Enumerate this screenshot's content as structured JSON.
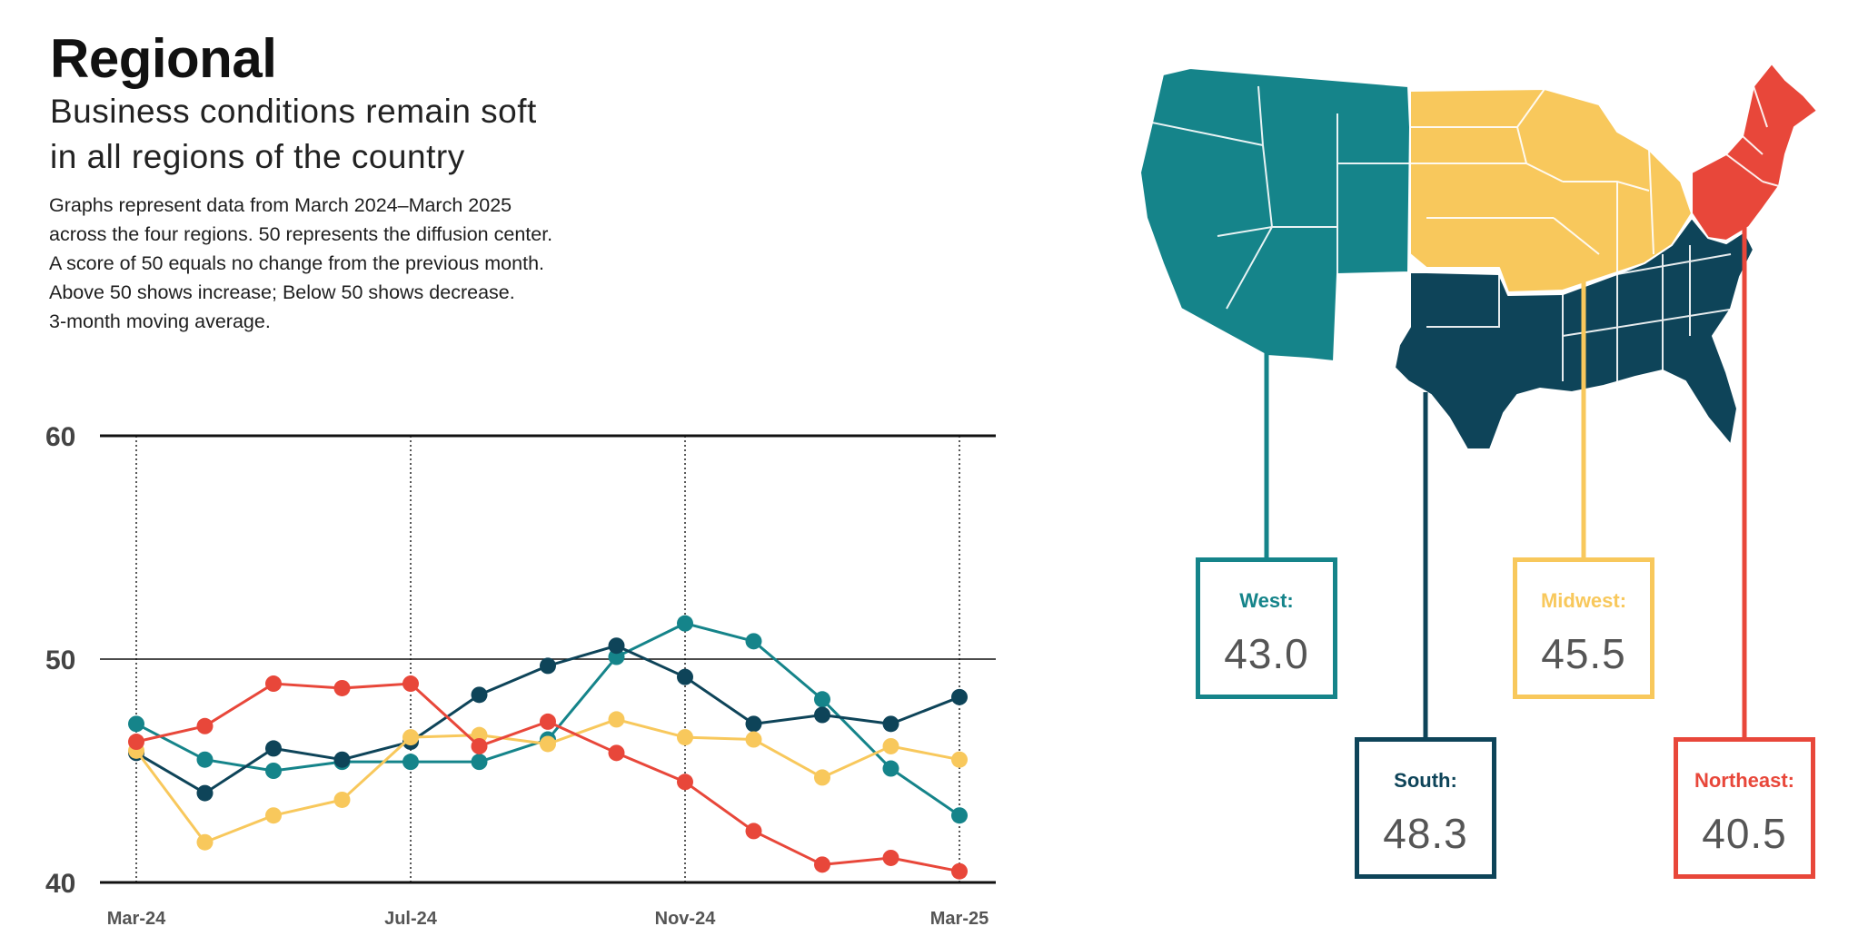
{
  "header": {
    "title": "Regional",
    "subtitle_line1": "Business conditions remain soft",
    "subtitle_line2": "in all regions of the country"
  },
  "description": [
    "Graphs represent data from March 2024–March 2025",
    "across the four regions. 50 represents the diffusion center.",
    "A score of 50 equals no change from the previous month.",
    "Above 50 shows increase; Below 50 shows decrease.",
    "3-month moving average."
  ],
  "colors": {
    "west": "#15848a",
    "south": "#0e4459",
    "midwest": "#f8c85c",
    "northeast": "#e8473a"
  },
  "chart_data": {
    "type": "line",
    "title": "Regional",
    "ylim": [
      40,
      60
    ],
    "yticks": [
      "60",
      "50",
      "40"
    ],
    "ytick_values": [
      60,
      50,
      40
    ],
    "xtick_labels": [
      "Mar-24",
      "Jul-24",
      "Nov-24",
      "Mar-25"
    ],
    "xtick_index": [
      0,
      4,
      8,
      12
    ],
    "x": [
      "Mar-24",
      "Apr-24",
      "May-24",
      "Jun-24",
      "Jul-24",
      "Aug-24",
      "Sep-24",
      "Oct-24",
      "Nov-24",
      "Dec-24",
      "Jan-25",
      "Feb-25",
      "Mar-25"
    ],
    "series": [
      {
        "name": "West",
        "key": "west",
        "values": [
          47.1,
          45.5,
          45.0,
          45.4,
          45.4,
          45.4,
          46.4,
          50.1,
          51.6,
          50.8,
          48.2,
          45.1,
          43.0
        ]
      },
      {
        "name": "South",
        "key": "south",
        "values": [
          45.8,
          44.0,
          46.0,
          45.5,
          46.3,
          48.4,
          49.7,
          50.6,
          49.2,
          47.1,
          47.5,
          47.1,
          48.3
        ]
      },
      {
        "name": "Midwest",
        "key": "midwest",
        "values": [
          45.9,
          41.8,
          43.0,
          43.7,
          46.5,
          46.6,
          46.2,
          47.3,
          46.5,
          46.4,
          44.7,
          46.1,
          45.5
        ]
      },
      {
        "name": "Northeast",
        "key": "northeast",
        "values": [
          46.3,
          47.0,
          48.9,
          48.7,
          48.9,
          46.1,
          47.2,
          45.8,
          44.5,
          42.3,
          40.8,
          41.1,
          40.5
        ]
      }
    ]
  },
  "callouts": {
    "west": {
      "label": "West:",
      "value": "43.0"
    },
    "south": {
      "label": "South:",
      "value": "48.3"
    },
    "midwest": {
      "label": "Midwest:",
      "value": "45.5"
    },
    "northeast": {
      "label": "Northeast:",
      "value": "40.5"
    }
  }
}
